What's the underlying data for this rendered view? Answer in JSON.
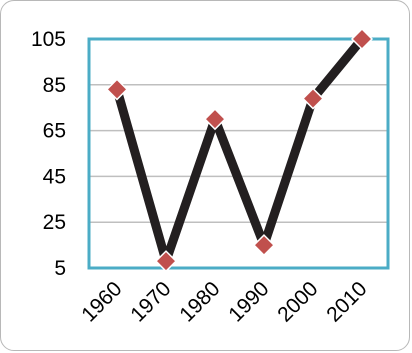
{
  "chart_data": {
    "type": "line",
    "title": "",
    "xlabel": "",
    "ylabel": "",
    "categories": [
      "1960",
      "1970",
      "1980",
      "1990",
      "2000",
      "2010"
    ],
    "series": [
      {
        "values": [
          83,
          8,
          70,
          15,
          79,
          105
        ]
      }
    ],
    "ylim": [
      5,
      105
    ],
    "yticks": [
      "5",
      "25",
      "45",
      "65",
      "85",
      "105"
    ],
    "grid": true,
    "legend": "none",
    "colors": {
      "line": "#231f20",
      "marker": "#c0504d",
      "plot_border": "#4bacc6",
      "grid": "#bfbfbf"
    }
  }
}
